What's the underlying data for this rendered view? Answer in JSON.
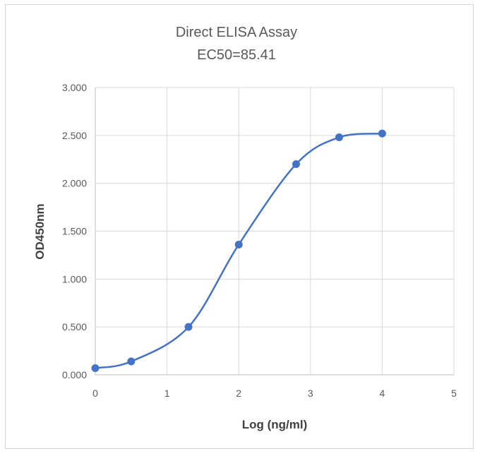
{
  "chart_data": {
    "type": "scatter",
    "title": "Direct ELISA Assay",
    "subtitle": "EC50=85.41",
    "xlabel": "Log (ng/ml)",
    "ylabel": "OD450nm",
    "xlim": [
      0,
      5
    ],
    "ylim": [
      0,
      3
    ],
    "x_ticks": [
      "0",
      "1",
      "2",
      "3",
      "4",
      "5"
    ],
    "y_ticks": [
      "0.000",
      "0.500",
      "1.000",
      "1.500",
      "2.000",
      "2.500",
      "3.000"
    ],
    "grid": true,
    "legend": "none",
    "smooth_line": true,
    "series": [
      {
        "x": [
          0,
          0.5,
          1.3,
          2.0,
          2.8,
          3.4,
          4.0
        ],
        "y": [
          0.07,
          0.14,
          0.5,
          1.36,
          2.2,
          2.48,
          2.52
        ],
        "color": "#4472c4"
      }
    ]
  }
}
